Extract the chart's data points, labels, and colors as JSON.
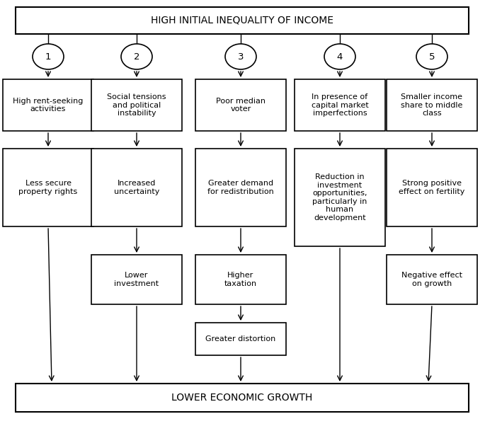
{
  "title_top": "HIGH INITIAL INEQUALITY OF INCOME",
  "title_bottom": "LOWER ECONOMIC GROWTH",
  "circles": [
    "1",
    "2",
    "3",
    "4",
    "5"
  ],
  "row1_labels": [
    "High rent-seeking\nactivities",
    "Social tensions\nand political\ninstability",
    "Poor median\nvoter",
    "In presence of\ncapital market\nimperfections",
    "Smaller income\nshare to middle\nclass"
  ],
  "row2_labels": [
    "Less secure\nproperty rights",
    "Increased\nuncertainty",
    "Greater demand\nfor redistribution",
    "Reduction in\ninvestment\nopportunities,\nparticularly in\nhuman\ndevelopment",
    "Strong positive\neffect on fertility"
  ],
  "row3_labels_exist": [
    false,
    true,
    true,
    false,
    true
  ],
  "row3_labels": [
    "",
    "Lower\ninvestment",
    "Higher\ntaxation",
    "",
    "Negative effect\non growth"
  ],
  "row4_label": "Greater distortion",
  "bg_color": "#ffffff",
  "font_size": 8.0,
  "title_font_size": 10.0
}
